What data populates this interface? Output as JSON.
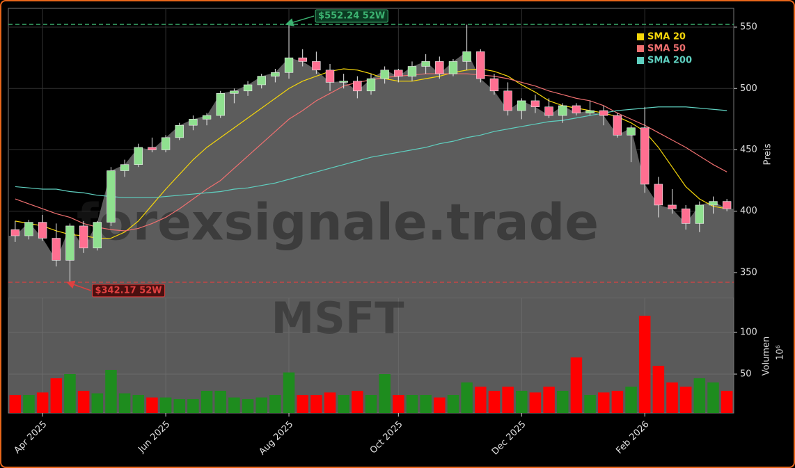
{
  "chart_data": {
    "type": "candlestick",
    "watermark": "forexsignale.trade",
    "symbol": "MSFT",
    "ylabel": "Preis",
    "ylim": [
      329.6,
      565.3
    ],
    "yticks": [
      350,
      400,
      450,
      500,
      550
    ],
    "grid": true,
    "legend": "upper right",
    "up_color": "#8fe08f",
    "down_color": "#ff6f91",
    "area_color": "#5c5c5c",
    "categories": [
      null,
      null,
      "Apr 2025",
      null,
      null,
      null,
      null,
      null,
      null,
      null,
      null,
      "Jun 2025",
      null,
      null,
      null,
      null,
      null,
      null,
      null,
      null,
      "Aug 2025",
      null,
      null,
      null,
      null,
      null,
      null,
      null,
      "Oct 2025",
      null,
      null,
      null,
      null,
      null,
      null,
      null,
      null,
      "Dec 2025",
      null,
      null,
      null,
      null,
      null,
      null,
      null,
      null,
      "Feb 2026",
      null,
      null,
      null,
      null,
      null,
      null
    ],
    "open": [
      385,
      380,
      391,
      378,
      360,
      388,
      370,
      391,
      433,
      438,
      452,
      450,
      460,
      470,
      475,
      478,
      496,
      498,
      503,
      510,
      513,
      525,
      522,
      515,
      505,
      506,
      498,
      508,
      515,
      510,
      518,
      522,
      512,
      522,
      530,
      508,
      498,
      482,
      490,
      485,
      478,
      486,
      480,
      482,
      478,
      462,
      468,
      422,
      405,
      402,
      390,
      405,
      408
    ],
    "high": [
      392,
      393,
      397,
      390,
      390,
      392,
      392,
      436,
      442,
      455,
      460,
      462,
      472,
      478,
      480,
      498,
      500,
      506,
      512,
      516,
      552.24,
      532,
      530,
      520,
      512,
      510,
      512,
      518,
      516,
      522,
      528,
      526,
      524,
      552,
      532,
      512,
      505,
      492,
      495,
      492,
      488,
      488,
      490,
      486,
      480,
      470,
      485,
      428,
      418,
      405,
      408,
      412,
      410
    ],
    "low": [
      375,
      377,
      376,
      355,
      342.17,
      366,
      368,
      388,
      428,
      436,
      448,
      448,
      458,
      466,
      470,
      476,
      488,
      494,
      500,
      505,
      508,
      518,
      512,
      498,
      500,
      492,
      495,
      504,
      505,
      506,
      512,
      508,
      510,
      515,
      505,
      495,
      478,
      475,
      480,
      476,
      472,
      478,
      478,
      470,
      460,
      440,
      415,
      395,
      398,
      385,
      383,
      398,
      400
    ],
    "close": [
      380,
      391,
      378,
      360,
      388,
      370,
      391,
      433,
      438,
      452,
      450,
      460,
      470,
      475,
      478,
      496,
      498,
      503,
      510,
      513,
      525,
      522,
      515,
      505,
      506,
      498,
      508,
      515,
      510,
      518,
      522,
      512,
      522,
      530,
      508,
      498,
      482,
      490,
      485,
      478,
      486,
      480,
      482,
      478,
      462,
      468,
      422,
      405,
      402,
      390,
      405,
      408,
      402
    ],
    "series": [
      {
        "name": "SMA 20",
        "color": "#f5d60a",
        "values": [
          392,
          390,
          388,
          384,
          381,
          380,
          378,
          378,
          383,
          392,
          405,
          418,
          430,
          442,
          452,
          460,
          468,
          476,
          484,
          492,
          500,
          506,
          510,
          514,
          516,
          515,
          512,
          508,
          506,
          506,
          508,
          510,
          513,
          515,
          516,
          514,
          510,
          503,
          497,
          490,
          486,
          484,
          482,
          480,
          477,
          472,
          465,
          452,
          436,
          420,
          410,
          404,
          402
        ]
      },
      {
        "name": "SMA 50",
        "color": "#f07070",
        "values": [
          410,
          406,
          402,
          398,
          395,
          390,
          387,
          385,
          384,
          386,
          390,
          395,
          402,
          410,
          418,
          425,
          435,
          445,
          455,
          465,
          475,
          482,
          490,
          496,
          502,
          505,
          507,
          509,
          510,
          511,
          512,
          512,
          512,
          512,
          511,
          510,
          508,
          505,
          502,
          498,
          495,
          492,
          490,
          486,
          480,
          475,
          470,
          464,
          458,
          452,
          445,
          438,
          432
        ]
      },
      {
        "name": "SMA 200",
        "color": "#5fd0c0",
        "values": [
          420,
          419,
          418,
          418,
          416,
          415,
          413,
          412,
          411,
          411,
          411,
          412,
          413,
          414,
          415,
          416,
          418,
          419,
          421,
          423,
          426,
          429,
          432,
          435,
          438,
          441,
          444,
          446,
          448,
          450,
          452,
          455,
          457,
          460,
          462,
          465,
          467,
          469,
          471,
          473,
          474,
          476,
          478,
          480,
          482,
          483,
          484,
          485,
          485,
          485,
          484,
          483,
          482
        ]
      }
    ],
    "annotations": [
      {
        "label": "$552.24 52W",
        "value": 552.24,
        "color": "#3cb371"
      },
      {
        "label": "$342.17 52W",
        "value": 342.17,
        "color": "#e04040"
      }
    ],
    "volume": {
      "label": "Volumen",
      "unit": "10⁶",
      "up_color": "#1e8c1e",
      "down_color": "#ff0000",
      "ylim": [
        3.3,
        141.7
      ],
      "yticks": [
        50,
        100
      ],
      "values": [
        25,
        25,
        28,
        45,
        50,
        30,
        27,
        55,
        27,
        25,
        22,
        22,
        20,
        20,
        30,
        30,
        22,
        20,
        22,
        25,
        52,
        25,
        25,
        28,
        25,
        30,
        25,
        50,
        25,
        25,
        25,
        22,
        25,
        40,
        35,
        30,
        35,
        30,
        28,
        35,
        30,
        70,
        25,
        28,
        30,
        35,
        120,
        60,
        40,
        35,
        45,
        40,
        30
      ]
    }
  }
}
